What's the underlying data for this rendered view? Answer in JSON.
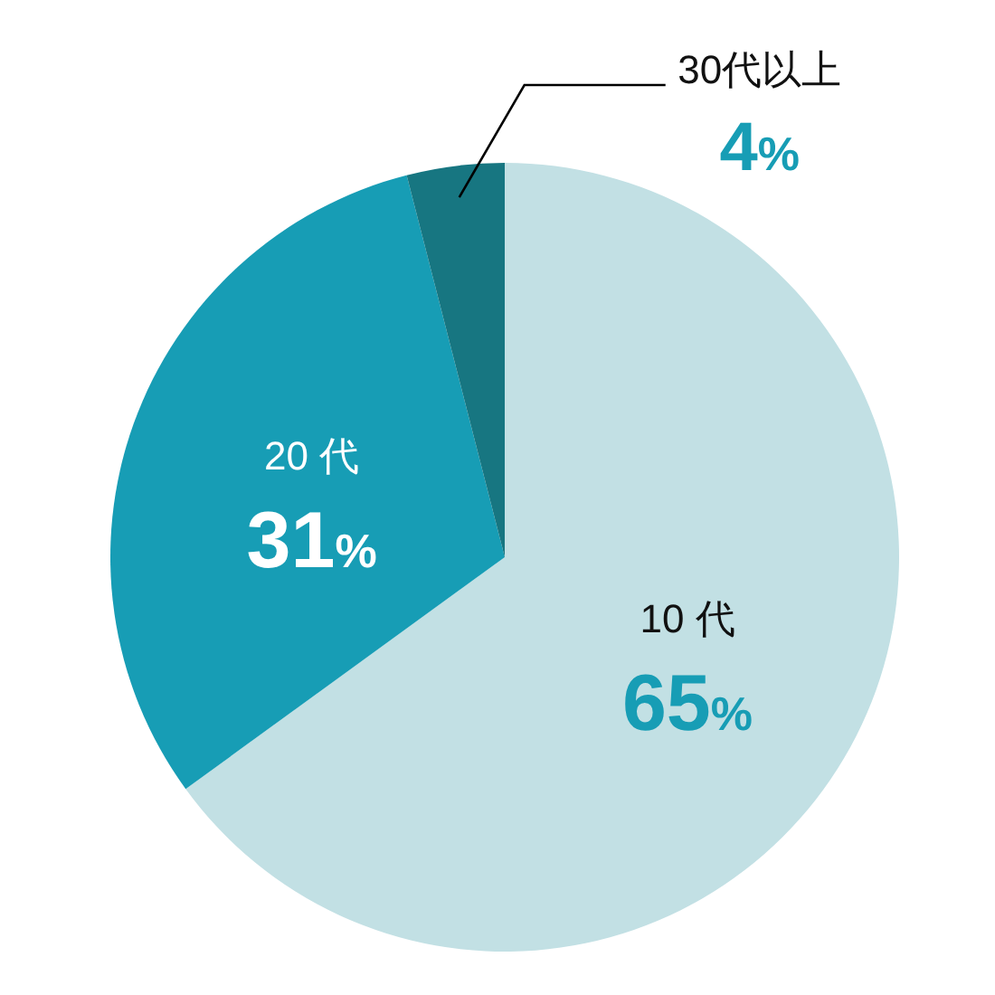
{
  "chart_data": {
    "type": "pie",
    "categories": [
      "10 代",
      "20 代",
      "30代以上"
    ],
    "values": [
      65,
      31,
      4
    ],
    "colors": [
      "#c2e0e4",
      "#179db5",
      "#177681"
    ],
    "value_labels": [
      "65%",
      "31%",
      "4%"
    ]
  }
}
